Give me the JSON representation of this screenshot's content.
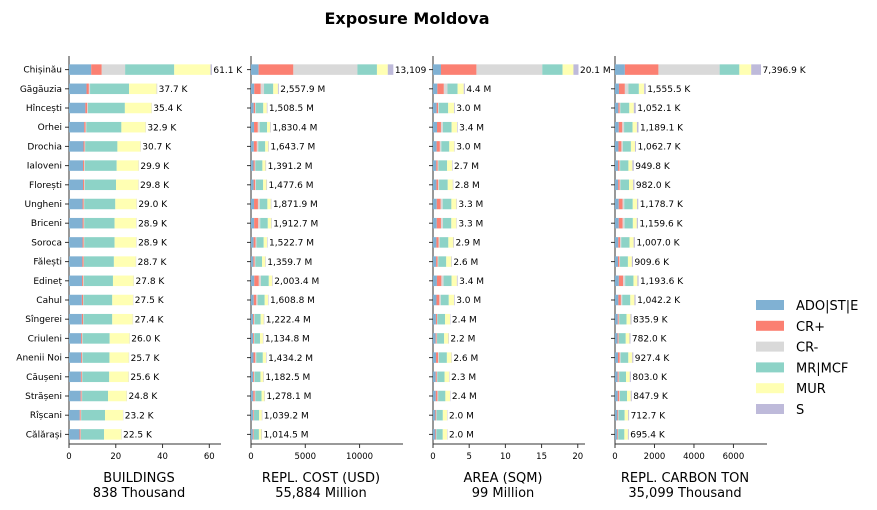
{
  "chart_data": {
    "type": "bar",
    "orientation": "horizontal",
    "stacked": true,
    "title": "Exposure Moldova",
    "categories": [
      "Chișinău",
      "Găgăuzia",
      "Hîncești",
      "Orhei",
      "Drochia",
      "Ialoveni",
      "Florești",
      "Ungheni",
      "Briceni",
      "Soroca",
      "Fălești",
      "Edineț",
      "Cahul",
      "Sîngerei",
      "Criuleni",
      "Anenii Noi",
      "Căușeni",
      "Strășeni",
      "Rîșcani",
      "Călărași"
    ],
    "legend": {
      "position": "right",
      "entries": [
        {
          "name": "ADO|ST|E",
          "color": "#80b1d3"
        },
        {
          "name": "CR+",
          "color": "#fb8072"
        },
        {
          "name": "CR-",
          "color": "#d9d9d9"
        },
        {
          "name": "MR|MCF",
          "color": "#8dd3c7"
        },
        {
          "name": "MUR",
          "color": "#ffffb3"
        },
        {
          "name": "S",
          "color": "#bebada"
        }
      ]
    },
    "panels": [
      {
        "xlabel": "BUILDINGS",
        "subtitle": "838 Thousand",
        "xlim": [
          0,
          65
        ],
        "xticks": [
          0,
          20,
          40,
          60
        ],
        "totals": [
          61.1,
          37.7,
          35.4,
          32.9,
          30.7,
          29.9,
          29.8,
          29.0,
          28.9,
          28.9,
          28.7,
          27.8,
          27.5,
          27.4,
          26.0,
          25.7,
          25.6,
          24.8,
          23.2,
          22.5
        ],
        "labels": [
          "61.1 K",
          "37.7 K",
          "35.4 K",
          "32.9 K",
          "30.7 K",
          "29.9 K",
          "29.8 K",
          "29.0 K",
          "28.9 K",
          "28.9 K",
          "28.7 K",
          "27.8 K",
          "27.5 K",
          "27.4 K",
          "26.0 K",
          "25.7 K",
          "25.6 K",
          "24.8 K",
          "23.2 K",
          "22.5 K"
        ],
        "series": [
          {
            "name": "ADO|ST|E",
            "values": [
              9.5,
              7.5,
              7.0,
              6.5,
              6.2,
              6.0,
              6.0,
              5.8,
              5.8,
              5.8,
              5.7,
              5.6,
              5.5,
              5.5,
              5.2,
              5.2,
              5.1,
              5.0,
              4.6,
              4.5
            ]
          },
          {
            "name": "CR+",
            "values": [
              4.5,
              1.0,
              0.8,
              0.6,
              0.5,
              0.5,
              0.5,
              0.5,
              0.5,
              0.5,
              0.5,
              0.5,
              0.5,
              0.5,
              0.4,
              0.4,
              0.4,
              0.4,
              0.4,
              0.4
            ]
          },
          {
            "name": "CR-",
            "values": [
              10.0,
              0.5,
              0.3,
              0.3,
              0.2,
              0.2,
              0.2,
              0.2,
              0.2,
              0.2,
              0.2,
              0.2,
              0.2,
              0.2,
              0.2,
              0.2,
              0.2,
              0.2,
              0.2,
              0.2
            ]
          },
          {
            "name": "MR|MCF",
            "values": [
              21.0,
              16.7,
              15.8,
              15.0,
              13.8,
              13.7,
              13.4,
              13.3,
              13.0,
              13.0,
              12.8,
              12.5,
              12.3,
              12.3,
              11.6,
              11.5,
              11.5,
              11.1,
              10.2,
              9.9
            ]
          },
          {
            "name": "MUR",
            "values": [
              15.5,
              11.8,
              11.4,
              10.4,
              9.9,
              9.4,
              9.6,
              9.1,
              9.3,
              9.3,
              9.4,
              8.9,
              8.9,
              8.8,
              8.5,
              8.3,
              8.3,
              8.0,
              7.7,
              7.4
            ]
          },
          {
            "name": "S",
            "values": [
              0.6,
              0.2,
              0.1,
              0.1,
              0.1,
              0.1,
              0.1,
              0.1,
              0.1,
              0.1,
              0.1,
              0.1,
              0.1,
              0.1,
              0.1,
              0.1,
              0.1,
              0.1,
              0.1,
              0.1
            ]
          }
        ]
      },
      {
        "xlabel": "REPL. COST (USD)",
        "subtitle": "55,884 Million",
        "xlim": [
          0,
          14000
        ],
        "xticks": [
          0,
          5000,
          10000
        ],
        "totals": [
          13109,
          2557.9,
          1508.5,
          1830.4,
          1643.7,
          1391.2,
          1477.6,
          1871.9,
          1912.7,
          1522.7,
          1359.7,
          2003.4,
          1608.8,
          1222.4,
          1134.8,
          1434.2,
          1182.5,
          1278.1,
          1039.2,
          1014.5
        ],
        "labels": [
          "13,109",
          "2,557.9 M",
          "1,508.5 M",
          "1,830.4 M",
          "1,643.7 M",
          "1,391.2 M",
          "1,477.6 M",
          "1,871.9 M",
          "1,912.7 M",
          "1,522.7 M",
          "1,359.7 M",
          "2,003.4 M",
          "1,608.8 M",
          "1,222.4 M",
          "1,134.8 M",
          "1,434.2 M",
          "1,182.5 M",
          "1,278.1 M",
          "1,039.2 M",
          "1,014.5 M"
        ],
        "series": [
          {
            "name": "ADO|ST|E",
            "values": [
              700,
              300,
              250,
              280,
              260,
              230,
              240,
              280,
              290,
              240,
              220,
              300,
              250,
              200,
              190,
              230,
              200,
              210,
              180,
              170
            ]
          },
          {
            "name": "CR+",
            "values": [
              3200,
              600,
              120,
              350,
              280,
              120,
              150,
              360,
              380,
              180,
              120,
              420,
              240,
              90,
              80,
              170,
              90,
              140,
              70,
              60
            ]
          },
          {
            "name": "CR-",
            "values": [
              5900,
              300,
              60,
              170,
              130,
              60,
              70,
              170,
              180,
              90,
              60,
              200,
              120,
              40,
              40,
              80,
              40,
              60,
              30,
              30
            ]
          },
          {
            "name": "MR|MCF",
            "values": [
              1800,
              850,
              700,
              680,
              640,
              640,
              660,
              700,
              700,
              660,
              620,
              720,
              650,
              560,
              520,
              610,
              540,
              560,
              470,
              470
            ]
          },
          {
            "name": "MUR",
            "values": [
              1000,
              430,
              330,
              300,
              290,
              290,
              310,
              320,
              320,
              310,
              300,
              320,
              310,
              290,
              270,
              300,
              270,
              270,
              250,
              240
            ]
          },
          {
            "name": "S",
            "values": [
              509,
              77.9,
              48.5,
              50.4,
              43.7,
              51.2,
              47.6,
              41.9,
              42.7,
              42.7,
              39.7,
              43.4,
              38.8,
              42.4,
              34.8,
              44.2,
              42.5,
              38.1,
              39.2,
              44.5
            ]
          }
        ]
      },
      {
        "xlabel": "AREA (SQM)",
        "subtitle": "99 Million",
        "xlim": [
          0,
          21
        ],
        "xticks": [
          0,
          5,
          10,
          15,
          20
        ],
        "totals": [
          20.1,
          4.4,
          3.0,
          3.4,
          3.0,
          2.7,
          2.8,
          3.3,
          3.3,
          2.9,
          2.6,
          3.4,
          3.0,
          2.4,
          2.2,
          2.6,
          2.3,
          2.4,
          2.0,
          2.0
        ],
        "labels": [
          "20.1 M",
          "4.4 M",
          "3.0 M",
          "3.4 M",
          "3.0 M",
          "2.7 M",
          "2.8 M",
          "3.3 M",
          "3.3 M",
          "2.9 M",
          "2.6 M",
          "3.4 M",
          "3.0 M",
          "2.4 M",
          "2.2 M",
          "2.6 M",
          "2.3 M",
          "2.4 M",
          "2.0 M",
          "2.0 M"
        ],
        "series": [
          {
            "name": "ADO|ST|E",
            "values": [
              1.1,
              0.6,
              0.5,
              0.55,
              0.5,
              0.45,
              0.47,
              0.52,
              0.52,
              0.47,
              0.43,
              0.54,
              0.48,
              0.4,
              0.37,
              0.42,
              0.38,
              0.39,
              0.33,
              0.33
            ]
          },
          {
            "name": "CR+",
            "values": [
              4.9,
              0.9,
              0.2,
              0.55,
              0.45,
              0.2,
              0.25,
              0.55,
              0.58,
              0.3,
              0.2,
              0.62,
              0.4,
              0.15,
              0.13,
              0.27,
              0.15,
              0.22,
              0.12,
              0.1
            ]
          },
          {
            "name": "CR-",
            "values": [
              9.1,
              0.5,
              0.1,
              0.27,
              0.2,
              0.1,
              0.12,
              0.27,
              0.28,
              0.15,
              0.1,
              0.3,
              0.2,
              0.07,
              0.06,
              0.13,
              0.07,
              0.1,
              0.05,
              0.05
            ]
          },
          {
            "name": "MR|MCF",
            "values": [
              2.8,
              1.4,
              1.3,
              1.2,
              1.1,
              1.2,
              1.2,
              1.2,
              1.15,
              1.2,
              1.1,
              1.1,
              1.1,
              1.05,
              0.98,
              1.1,
              1.0,
              1.0,
              0.86,
              0.87
            ]
          },
          {
            "name": "MUR",
            "values": [
              1.5,
              0.85,
              0.8,
              0.75,
              0.7,
              0.68,
              0.7,
              0.7,
              0.7,
              0.7,
              0.7,
              0.74,
              0.74,
              0.68,
              0.6,
              0.63,
              0.65,
              0.64,
              0.59,
              0.6
            ]
          },
          {
            "name": "S",
            "values": [
              0.7,
              0.15,
              0.1,
              0.08,
              0.05,
              0.07,
              0.06,
              0.06,
              0.05,
              0.08,
              0.07,
              0.1,
              0.08,
              0.05,
              0.06,
              0.05,
              0.05,
              0.05,
              0.05,
              0.05
            ]
          }
        ]
      },
      {
        "xlabel": "REPL. CARBON TON",
        "subtitle": "35,099 Thousand",
        "xlim": [
          0,
          7700
        ],
        "xticks": [
          0,
          2000,
          4000,
          6000
        ],
        "totals": [
          7396.9,
          1555.5,
          1052.1,
          1189.1,
          1062.7,
          949.8,
          982.0,
          1178.7,
          1159.6,
          1007.0,
          909.6,
          1193.6,
          1042.2,
          835.9,
          782.0,
          927.4,
          803.0,
          847.9,
          712.7,
          695.4
        ],
        "labels": [
          "7,396.9 K",
          "1,555.5 K",
          "1,052.1 K",
          "1,189.1 K",
          "1,062.7 K",
          "949.8 K",
          "982.0 K",
          "1,178.7 K",
          "1,159.6 K",
          "1,007.0 K",
          "909.6 K",
          "1,193.6 K",
          "1,042.2 K",
          "835.9 K",
          "782.0 K",
          "927.4 K",
          "803.0 K",
          "847.9 K",
          "712.7 K",
          "695.4 K"
        ],
        "series": [
          {
            "name": "ADO|ST|E",
            "values": [
              500,
              200,
              170,
              190,
              175,
              155,
              160,
              190,
              190,
              165,
              150,
              195,
              170,
              140,
              130,
              150,
              135,
              140,
              120,
              115
            ]
          },
          {
            "name": "CR+",
            "values": [
              1700,
              300,
              70,
              180,
              150,
              70,
              80,
              190,
              200,
              100,
              70,
              220,
              130,
              50,
              45,
              90,
              50,
              75,
              40,
              35
            ]
          },
          {
            "name": "CR-",
            "values": [
              3100,
              180,
              35,
              90,
              70,
              35,
              40,
              90,
              95,
              50,
              35,
              100,
              65,
              25,
              20,
              45,
              25,
              35,
              20,
              15
            ]
          },
          {
            "name": "MR|MCF",
            "values": [
              1000,
              530,
              450,
              430,
              410,
              420,
              430,
              430,
              420,
              420,
              400,
              420,
              410,
              370,
              350,
              390,
              350,
              360,
              310,
              310
            ]
          },
          {
            "name": "MUR",
            "values": [
              600,
              270,
              230,
              220,
              210,
              200,
              210,
              220,
              200,
              210,
              200,
              200,
              210,
              200,
              190,
              200,
              190,
              190,
              180,
              180
            ]
          },
          {
            "name": "S",
            "values": [
              496.9,
              75.5,
              97.1,
              79.1,
              47.7,
              69.8,
              62.0,
              58.7,
              54.6,
              62.0,
              54.6,
              58.6,
              57.2,
              50.9,
              47.0,
              52.4,
              53.0,
              47.9,
              42.7,
              40.4
            ]
          }
        ]
      }
    ]
  }
}
